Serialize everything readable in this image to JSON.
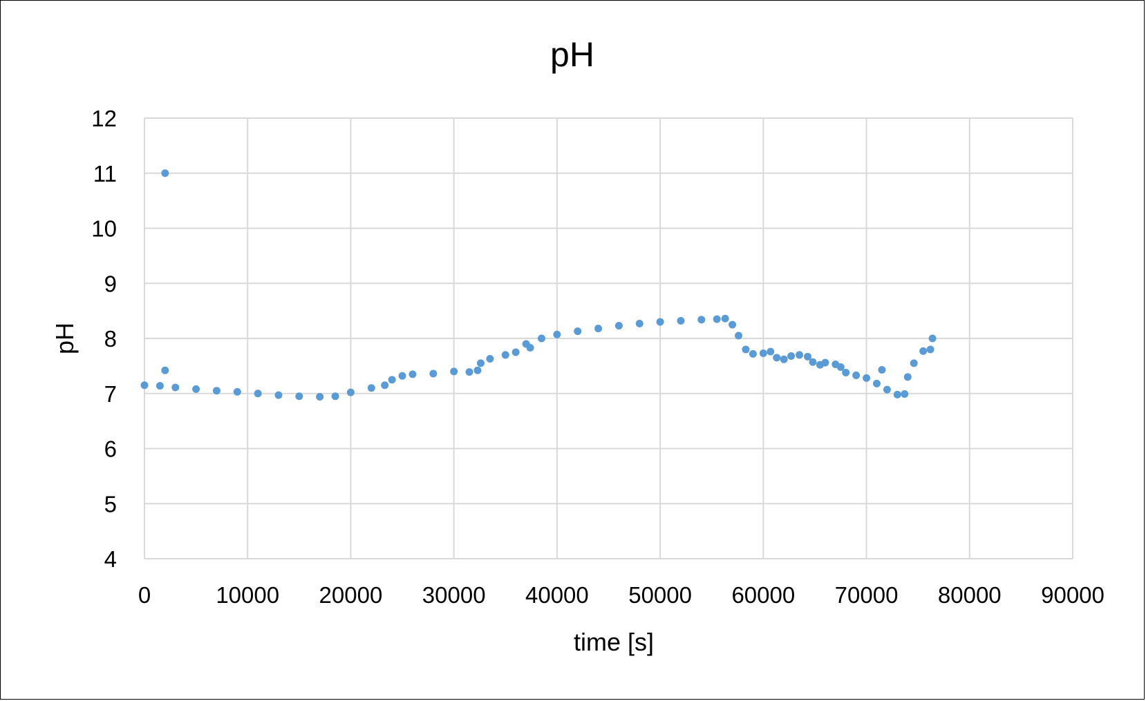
{
  "chart_data": {
    "type": "scatter",
    "title": "pH",
    "xlabel": "time [s]",
    "ylabel": "pH",
    "xlim": [
      0,
      90000
    ],
    "ylim": [
      4,
      12
    ],
    "x_ticks": [
      0,
      10000,
      20000,
      30000,
      40000,
      50000,
      60000,
      70000,
      80000,
      90000
    ],
    "y_ticks": [
      4,
      5,
      6,
      7,
      8,
      9,
      10,
      11,
      12
    ],
    "grid": true,
    "legend": "none",
    "color": "#5b9bd5",
    "series": [
      {
        "points": [
          [
            0,
            7.15
          ],
          [
            1500,
            7.14
          ],
          [
            3000,
            7.11
          ],
          [
            5000,
            7.08
          ],
          [
            7000,
            7.05
          ],
          [
            9000,
            7.03
          ],
          [
            11000,
            7.0
          ],
          [
            13000,
            6.97
          ],
          [
            15000,
            6.95
          ],
          [
            17000,
            6.94
          ],
          [
            18500,
            6.95
          ],
          [
            20000,
            7.02
          ],
          [
            22000,
            7.1
          ],
          [
            23300,
            7.15
          ],
          [
            24000,
            7.25
          ],
          [
            25000,
            7.32
          ],
          [
            26000,
            7.35
          ],
          [
            28000,
            7.36
          ],
          [
            30000,
            7.4
          ],
          [
            31500,
            7.39
          ],
          [
            32300,
            7.42
          ],
          [
            32600,
            7.55
          ],
          [
            33500,
            7.63
          ],
          [
            35000,
            7.7
          ],
          [
            36000,
            7.75
          ],
          [
            37000,
            7.9
          ],
          [
            38500,
            8.0
          ],
          [
            40000,
            8.07
          ],
          [
            42000,
            8.13
          ],
          [
            44000,
            8.18
          ],
          [
            46000,
            8.23
          ],
          [
            48000,
            8.27
          ],
          [
            50000,
            8.3
          ],
          [
            52000,
            8.32
          ],
          [
            54000,
            8.34
          ],
          [
            55500,
            8.35
          ],
          [
            56300,
            8.36
          ],
          [
            57000,
            8.25
          ],
          [
            57600,
            8.05
          ],
          [
            58300,
            7.8
          ],
          [
            59000,
            7.72
          ],
          [
            60000,
            7.73
          ],
          [
            60700,
            7.76
          ],
          [
            61300,
            7.65
          ],
          [
            62000,
            7.62
          ],
          [
            62700,
            7.68
          ],
          [
            63500,
            7.7
          ],
          [
            64300,
            7.67
          ],
          [
            64800,
            7.57
          ],
          [
            65500,
            7.52
          ],
          [
            66000,
            7.56
          ],
          [
            67000,
            7.53
          ],
          [
            67500,
            7.48
          ],
          [
            68000,
            7.38
          ],
          [
            69000,
            7.33
          ],
          [
            70000,
            7.28
          ],
          [
            71000,
            7.18
          ],
          [
            72000,
            7.07
          ],
          [
            73000,
            6.98
          ],
          [
            73700,
            6.99
          ],
          [
            74000,
            7.3
          ],
          [
            74600,
            7.55
          ],
          [
            75500,
            7.77
          ],
          [
            76200,
            7.8
          ],
          [
            76400,
            8.0
          ],
          [
            2000,
            11.0
          ],
          [
            2000,
            7.42
          ],
          [
            37400,
            7.83
          ],
          [
            71500,
            7.43
          ]
        ]
      }
    ]
  }
}
